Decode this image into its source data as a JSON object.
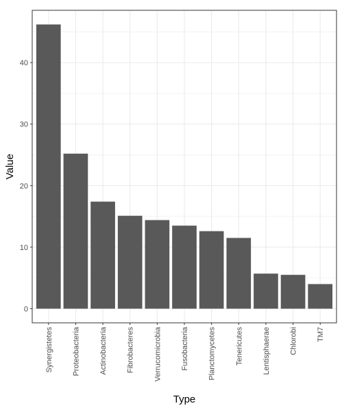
{
  "chart_data": {
    "type": "bar",
    "title": "",
    "xlabel": "Type",
    "ylabel": "Value",
    "categories": [
      "Synergistetes",
      "Proteobacteria",
      "Actinobacteria",
      "Fibrobacteres",
      "Verrucomicrobia",
      "Fusobacteria",
      "Planctomycetes",
      "Tenericutes",
      "Lentisphaerae",
      "Chlorobi",
      "TM7"
    ],
    "values": [
      46.2,
      25.2,
      17.4,
      15.1,
      14.4,
      13.5,
      12.6,
      11.5,
      5.7,
      5.5,
      4.0
    ],
    "ylim": [
      -2.3,
      48.5
    ],
    "yticks": [
      0,
      10,
      20,
      30,
      40
    ],
    "grid": true,
    "bar_color": "#595959",
    "grid_color": "#ebebeb",
    "panel_border_color": "#333333"
  }
}
